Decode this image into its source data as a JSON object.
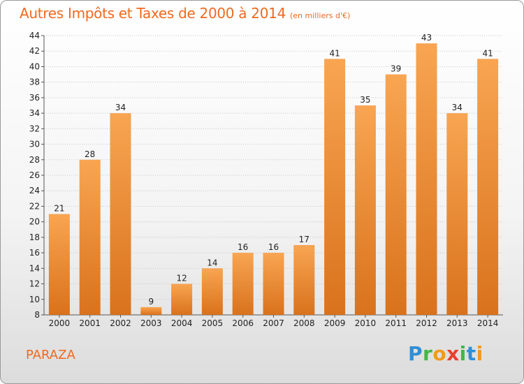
{
  "header": {
    "title": "Autres Impôts et Taxes de 2000 à 2014",
    "subtitle": "(en milliers d'€)"
  },
  "location": "PARAZA",
  "logo": {
    "letters": [
      "P",
      "r",
      "o",
      "x",
      "i",
      "t",
      "i"
    ]
  },
  "colors": {
    "bar_top": "#f8a552",
    "bar_bottom": "#d9721c",
    "title": "#ee6a1f",
    "grid": "#c8c8c8"
  },
  "chart_data": {
    "type": "bar",
    "title": "Autres Impôts et Taxes de 2000 à 2014",
    "subtitle": "(en milliers d'€)",
    "xlabel": "",
    "ylabel": "",
    "categories": [
      "2000",
      "2001",
      "2002",
      "2003",
      "2004",
      "2005",
      "2006",
      "2007",
      "2008",
      "2009",
      "2010",
      "2011",
      "2012",
      "2013",
      "2014"
    ],
    "values": [
      21,
      28,
      34,
      9,
      12,
      14,
      16,
      16,
      17,
      41,
      35,
      39,
      43,
      34,
      41
    ],
    "ylim": [
      8,
      44
    ],
    "yticks": [
      8,
      10,
      12,
      14,
      16,
      18,
      20,
      22,
      24,
      26,
      28,
      30,
      32,
      34,
      36,
      38,
      40,
      42,
      44
    ],
    "grid": true,
    "data_labels": true
  }
}
